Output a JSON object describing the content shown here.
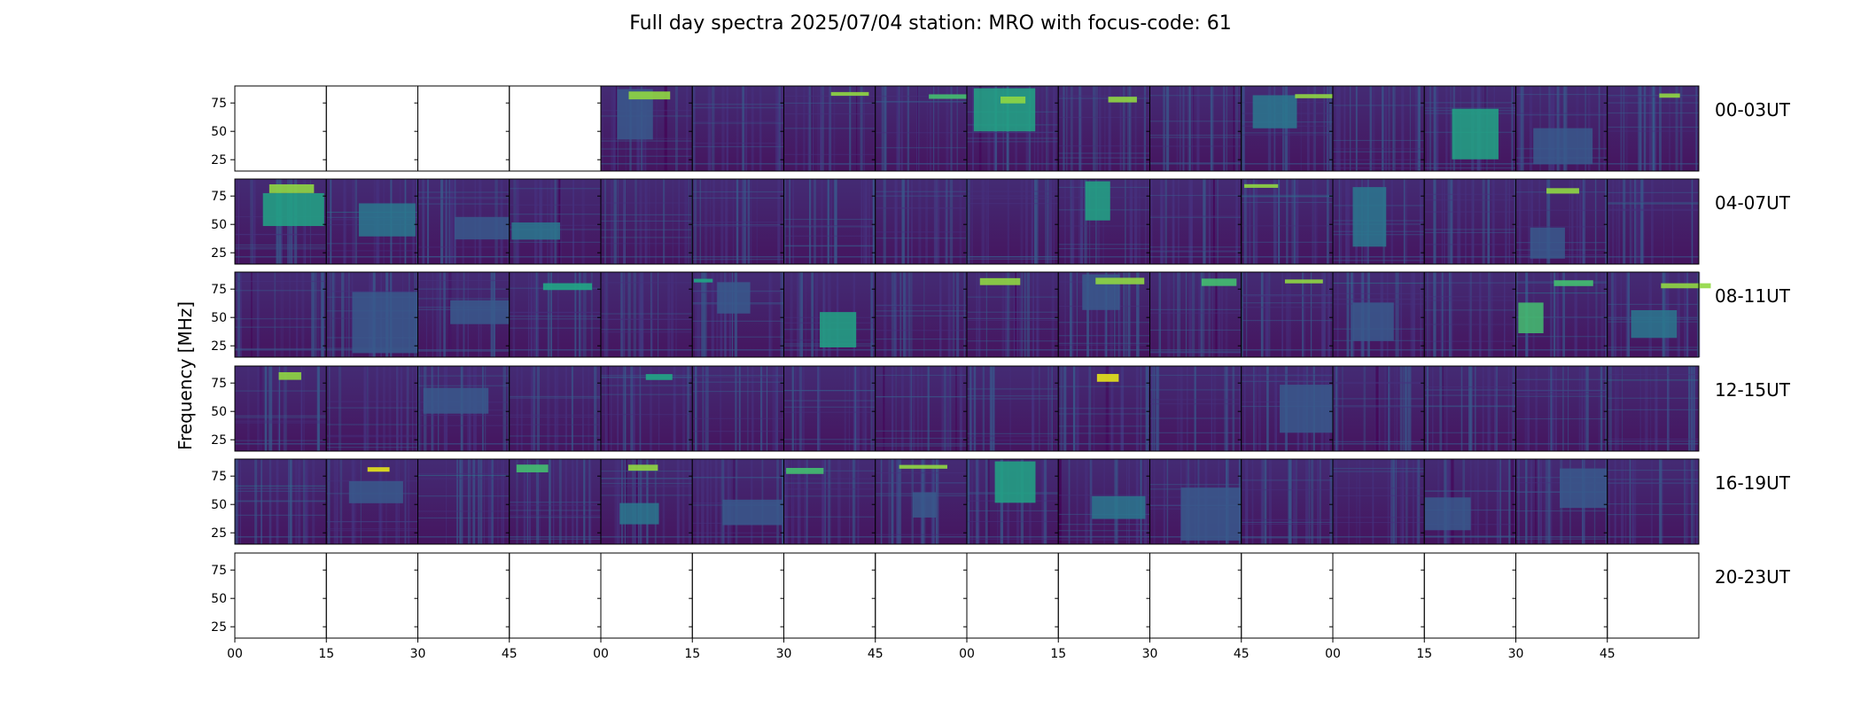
{
  "chart_data": {
    "type": "heatmap",
    "title": "Full day spectra 2025/07/04 station: MRO with focus-code: 61",
    "ylabel": "Frequency [MHz]",
    "xlabel": "",
    "y_ticks": [
      "25",
      "50",
      "75"
    ],
    "ylim": [
      15,
      90
    ],
    "x_ticks": [
      "00",
      "15",
      "30",
      "45",
      "00",
      "15",
      "30",
      "45",
      "00",
      "15",
      "30",
      "45",
      "00",
      "15",
      "30",
      "45"
    ],
    "colormap": "viridis",
    "panels_per_row": 16,
    "panel_minutes": 15,
    "rows": [
      {
        "label": "00-03UT",
        "filled": [
          false,
          false,
          false,
          false,
          true,
          true,
          true,
          true,
          true,
          true,
          true,
          true,
          true,
          true,
          true,
          true
        ]
      },
      {
        "label": "04-07UT",
        "filled": [
          true,
          true,
          true,
          true,
          true,
          true,
          true,
          true,
          true,
          true,
          true,
          true,
          true,
          true,
          true,
          true
        ]
      },
      {
        "label": "08-11UT",
        "filled": [
          true,
          true,
          true,
          true,
          true,
          true,
          true,
          true,
          true,
          true,
          true,
          true,
          true,
          true,
          true,
          true
        ]
      },
      {
        "label": "12-15UT",
        "filled": [
          true,
          true,
          true,
          true,
          true,
          true,
          true,
          true,
          true,
          true,
          true,
          true,
          true,
          true,
          true,
          true
        ]
      },
      {
        "label": "16-19UT",
        "filled": [
          true,
          true,
          true,
          true,
          true,
          true,
          true,
          true,
          true,
          true,
          true,
          true,
          true,
          true,
          true,
          true
        ]
      },
      {
        "label": "20-23UT",
        "filled": [
          false,
          false,
          false,
          false,
          false,
          false,
          false,
          false,
          false,
          false,
          false,
          false,
          false,
          false,
          false,
          false
        ]
      }
    ]
  }
}
